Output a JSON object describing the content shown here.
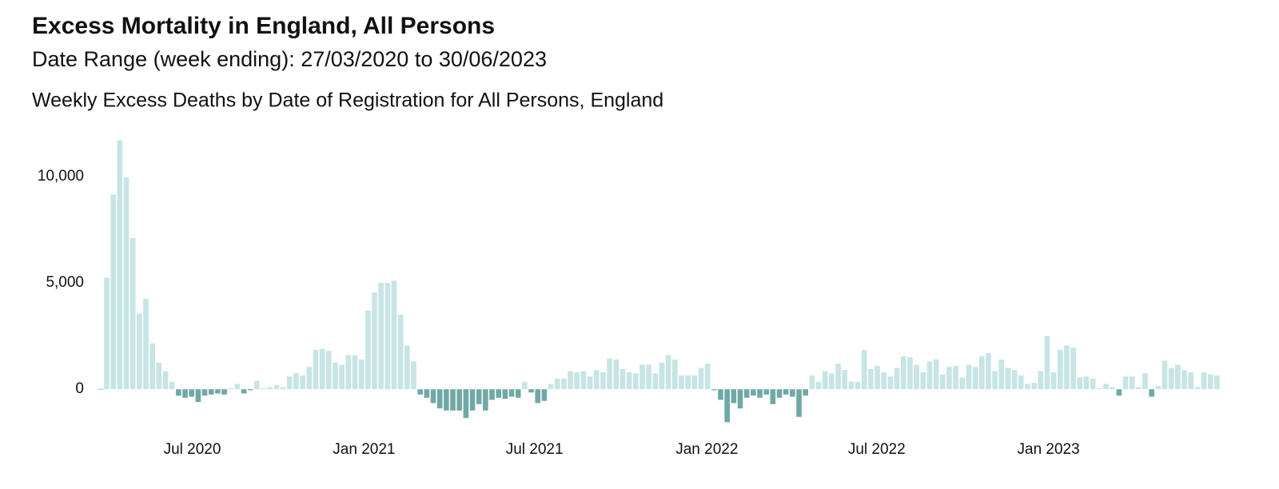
{
  "header": {
    "title": "Excess Mortality in England, All Persons",
    "subtitle": "Date Range (week ending): 27/03/2020 to 30/06/2023"
  },
  "chart_data": {
    "type": "bar",
    "title": "Weekly Excess Deaths by Date of Registration for All Persons, England",
    "categories": [
      null,
      null,
      null,
      null,
      null,
      null,
      null,
      null,
      null,
      null,
      null,
      null,
      null,
      null,
      null,
      null,
      null,
      null,
      null,
      null,
      null,
      null,
      null,
      null,
      null,
      null,
      null,
      null,
      null,
      null,
      null,
      null,
      null,
      null,
      null,
      null,
      null,
      null,
      null,
      null,
      null,
      null,
      null,
      null,
      null,
      null,
      null,
      null,
      null,
      null,
      null,
      null,
      null,
      null,
      null,
      null,
      null,
      null,
      null,
      null,
      null,
      null,
      null,
      null,
      null,
      null,
      null,
      null,
      null,
      null,
      null,
      null,
      null,
      null,
      null,
      null,
      null,
      null,
      null,
      null,
      null,
      null,
      null,
      null,
      null,
      null,
      null,
      null,
      null,
      null,
      null,
      null,
      null,
      null,
      null,
      null,
      null,
      null,
      null,
      null,
      null,
      null,
      null,
      null,
      null,
      null,
      null,
      null,
      null,
      null,
      null,
      null,
      null,
      null,
      null,
      null,
      null,
      null,
      null,
      null,
      null,
      null,
      null,
      null,
      null,
      null,
      null,
      null,
      null,
      null,
      null,
      null,
      null,
      null,
      null,
      null,
      null,
      null,
      null,
      null,
      null,
      null,
      null,
      null,
      null,
      null,
      null,
      null,
      null,
      null,
      null,
      null,
      null,
      null,
      null,
      null,
      null,
      null,
      null,
      null,
      null,
      null,
      null,
      null,
      null,
      null,
      null,
      null,
      null,
      null,
      null
    ],
    "values": [
      5250,
      9150,
      11700,
      9950,
      7100,
      3550,
      4250,
      2150,
      1250,
      850,
      350,
      -300,
      -400,
      -350,
      -600,
      -300,
      -250,
      -200,
      -250,
      50,
      250,
      -200,
      -50,
      400,
      50,
      100,
      200,
      100,
      600,
      750,
      650,
      1050,
      1850,
      1900,
      1800,
      1250,
      1150,
      1600,
      1600,
      1400,
      3700,
      4550,
      5000,
      5000,
      5100,
      3500,
      2050,
      1300,
      -250,
      -400,
      -650,
      -900,
      -1000,
      -1000,
      -1000,
      -1350,
      -1000,
      -700,
      -1000,
      -500,
      -400,
      -450,
      -350,
      -400,
      350,
      -150,
      -650,
      -550,
      250,
      500,
      500,
      850,
      800,
      850,
      600,
      900,
      800,
      1450,
      1400,
      950,
      800,
      750,
      1150,
      1150,
      750,
      1250,
      1600,
      1400,
      650,
      650,
      650,
      1000,
      1200,
      -50,
      -500,
      -1550,
      -650,
      -900,
      -400,
      -300,
      -400,
      -250,
      -700,
      -400,
      -250,
      -350,
      -1300,
      -300,
      650,
      350,
      850,
      750,
      1200,
      900,
      350,
      350,
      1850,
      950,
      1100,
      800,
      600,
      1000,
      1550,
      1500,
      1150,
      800,
      1300,
      1400,
      700,
      1050,
      1100,
      550,
      1150,
      1050,
      1550,
      1700,
      850,
      1400,
      1000,
      900,
      650,
      250,
      300,
      850,
      2500,
      800,
      1850,
      2050,
      1950,
      550,
      600,
      500,
      50,
      250,
      100,
      -300,
      600,
      600,
      100,
      750,
      -350,
      150,
      1350,
      1000,
      1150,
      900,
      800,
      100,
      800,
      700,
      650
    ],
    "positive_color": "#c6e5e4",
    "negative_color": "#6fa9a5",
    "ylim": [
      -2000,
      12000
    ],
    "yticks": [
      0,
      {
        "value": 5000,
        "label": "5,000"
      },
      {
        "value": 10000,
        "label": "10,000"
      }
    ],
    "xticks": [
      {
        "value": 13.1,
        "label": "Jul 2020"
      },
      {
        "value": 39.4,
        "label": "Jan 2021"
      },
      {
        "value": 65.5,
        "label": "Jul 2021"
      },
      {
        "value": 91.9,
        "label": "Jan 2022"
      },
      {
        "value": 117.9,
        "label": "Jul 2022"
      },
      {
        "value": 144.2,
        "label": "Jan 2023"
      }
    ],
    "grid": false
  }
}
